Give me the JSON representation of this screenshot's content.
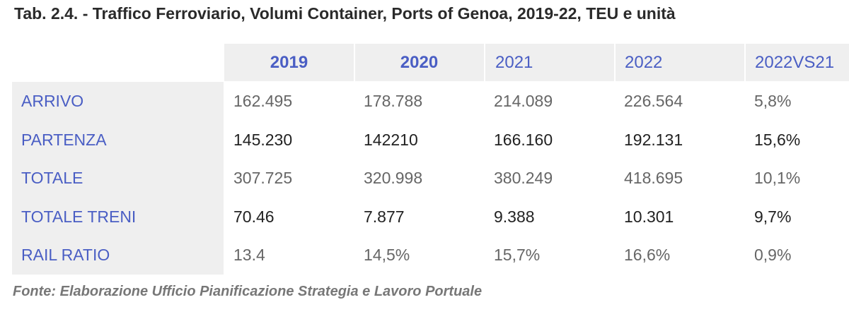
{
  "title": "Tab. 2.4. - Traffico Ferroviario, Volumi Container, Ports of Genoa, 2019-22, TEU e unità",
  "headers": [
    "2019",
    "2020",
    "2021",
    "2022",
    "2022VS21"
  ],
  "rows": [
    {
      "label": "ARRIVO",
      "values": [
        "162.495",
        "178.788",
        "214.089",
        "226.564",
        "5,8%"
      ]
    },
    {
      "label": "PARTENZA",
      "values": [
        "145.230",
        "142210",
        "166.160",
        "192.131",
        "15,6%"
      ]
    },
    {
      "label": "TOTALE",
      "values": [
        "307.725",
        "320.998",
        "380.249",
        "418.695",
        "10,1%"
      ]
    },
    {
      "label": "TOTALE TRENI",
      "values": [
        "70.46",
        "7.877",
        "9.388",
        "10.301",
        "9,7%"
      ]
    },
    {
      "label": "RAIL RATIO",
      "values": [
        "13.4",
        "14,5%",
        "15,7%",
        "16,6%",
        "0,9%"
      ]
    }
  ],
  "source": "Fonte: Elaborazione Ufficio Pianificazione Strategia e Lavoro Portuale"
}
